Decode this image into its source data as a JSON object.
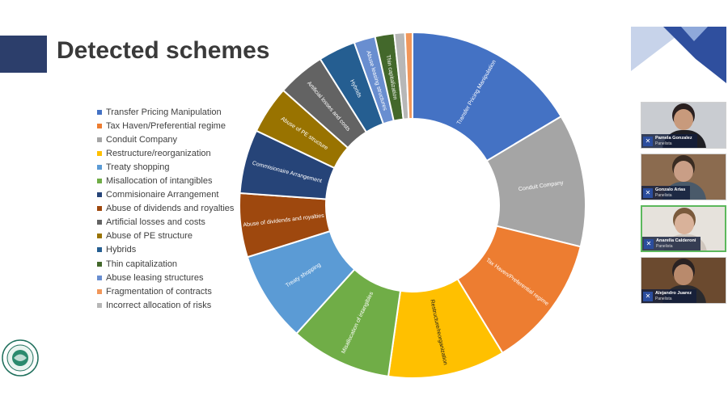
{
  "slide": {
    "title": "Detected schemes",
    "legend": [
      {
        "label": "Transfer Pricing Manipulation",
        "color": "#4472c4"
      },
      {
        "label": "Tax Haven/Preferential regime",
        "color": "#ed7d31"
      },
      {
        "label": "Conduit Company",
        "color": "#a5a5a5"
      },
      {
        "label": "Restructure/reorganization",
        "color": "#ffc000"
      },
      {
        "label": "Treaty shopping",
        "color": "#5b9bd5"
      },
      {
        "label": "Misallocation of intangibles",
        "color": "#70ad47"
      },
      {
        "label": "Commisionaire Arrangement",
        "color": "#264478"
      },
      {
        "label": "Abuse of dividends and royalties",
        "color": "#9e480e"
      },
      {
        "label": "Artificial losses and costs",
        "color": "#636363"
      },
      {
        "label": "Abuse of PE structure",
        "color": "#997300"
      },
      {
        "label": "Hybrids",
        "color": "#255e91"
      },
      {
        "label": "Thin capitalization",
        "color": "#43682b"
      },
      {
        "label": "Abuse leasing structures",
        "color": "#698ed0"
      },
      {
        "label": "Fragmentation of contracts",
        "color": "#f1975a"
      },
      {
        "label": "Incorrect allocation of risks",
        "color": "#b7b7b7"
      }
    ]
  },
  "chart_data": {
    "type": "pie",
    "title": "",
    "slices": [
      {
        "label": "Transfer Pricing Manipulation",
        "value": 16.5,
        "color": "#4472c4",
        "slice_label": "Transfer Pricing Manipulation"
      },
      {
        "label": "Conduit Company",
        "value": 12.5,
        "color": "#a5a5a5",
        "slice_label": "Conduit Company"
      },
      {
        "label": "Tax Haven/Preferential regime",
        "value": 12.5,
        "color": "#ed7d31",
        "slice_label": "Tax Haven/Preferential regime"
      },
      {
        "label": "Restructure/reorganization",
        "value": 11.0,
        "color": "#ffc000",
        "slice_label": "Restructure/reorganization"
      },
      {
        "label": "Misallocation of intangibles",
        "value": 9.5,
        "color": "#70ad47",
        "slice_label": "Misallocation of intangibles"
      },
      {
        "label": "Treaty shopping",
        "value": 8.5,
        "color": "#5b9bd5",
        "slice_label": "Treaty shopping"
      },
      {
        "label": "Abuse of dividends and royalties",
        "value": 6.0,
        "color": "#9e480e",
        "slice_label": "Abuse of dividends and royalties"
      },
      {
        "label": "Commisionaire Arrangement",
        "value": 6.0,
        "color": "#264478",
        "slice_label": "Commisionaire Arrangement"
      },
      {
        "label": "Abuse of PE structure",
        "value": 4.5,
        "color": "#997300",
        "slice_label": "Abuse of PE structure"
      },
      {
        "label": "Artificial losses and costs",
        "value": 4.5,
        "color": "#636363",
        "slice_label": "Artificial losses and costs"
      },
      {
        "label": "Hybrids",
        "value": 3.5,
        "color": "#255e91",
        "slice_label": "Hybrids"
      },
      {
        "label": "Abuse leasing structures",
        "value": 2.0,
        "color": "#698ed0",
        "slice_label": "Abuse leasing structures"
      },
      {
        "label": "Thin capitalization",
        "value": 1.8,
        "color": "#43682b",
        "slice_label": "Thin capitalization"
      },
      {
        "label": "Incorrect allocation of risks",
        "value": 1.0,
        "color": "#b7b7b7",
        "slice_label": ""
      },
      {
        "label": "Fragmentation of contracts",
        "value": 0.7,
        "color": "#f1975a",
        "slice_label": ""
      }
    ],
    "legend_position": "left"
  },
  "participants": [
    {
      "name": "Pamela Gonzalez",
      "role": "Panelista",
      "active": false,
      "bg": "#c9ccd1",
      "skin": "#c89a7c",
      "hair": "#2a2020",
      "shirt": "#1f1f24"
    },
    {
      "name": "Gonzalo Arias",
      "role": "Panelista",
      "active": false,
      "bg": "#8b6b4f",
      "skin": "#c99e86",
      "hair": "#3a2c22",
      "shirt": "#4a5a6a"
    },
    {
      "name": "Anarella Calderoni",
      "role": "Panelista",
      "active": true,
      "bg": "#e6e2dc",
      "skin": "#d9b29a",
      "hair": "#7a5a3c",
      "shirt": "#cfc6bd"
    },
    {
      "name": "Alejandro Juarez",
      "role": "Panelista",
      "active": false,
      "bg": "#6b4a2f",
      "skin": "#b98a6c",
      "hair": "#2a2222",
      "shirt": "#2a2a2e"
    }
  ],
  "icons": {
    "mic": "mic-off-icon",
    "logo": "organization-seal-logo"
  }
}
